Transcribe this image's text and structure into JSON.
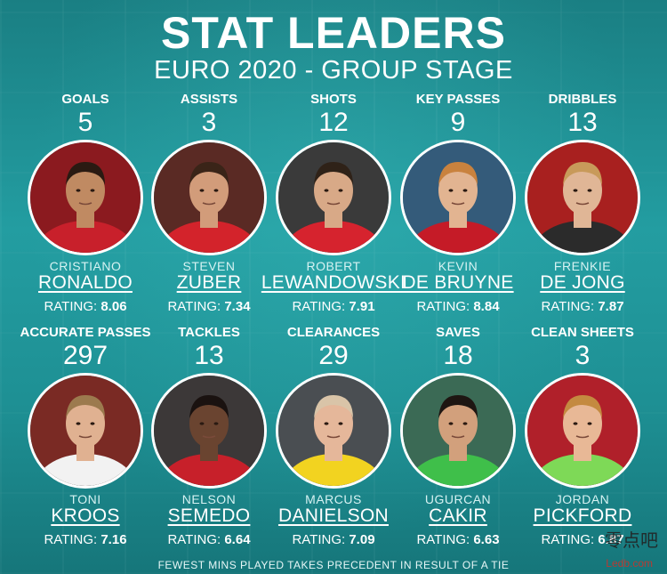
{
  "header": {
    "title": "STAT LEADERS",
    "subtitle": "EURO 2020 - GROUP STAGE"
  },
  "rating_label": "RATING:",
  "leaders": [
    {
      "category": "GOALS",
      "value": "5",
      "first": "CRISTIANO",
      "last": "RONALDO",
      "rating": "8.06",
      "kit": "#c8202b",
      "bg": "#8b1a1f",
      "skin": "#c08a62",
      "hair": "#2a1a12"
    },
    {
      "category": "ASSISTS",
      "value": "3",
      "first": "STEVEN",
      "last": "ZUBER",
      "rating": "7.34",
      "kit": "#d3232b",
      "bg": "#5a2a24",
      "skin": "#d29c7a",
      "hair": "#3a2418"
    },
    {
      "category": "SHOTS",
      "value": "12",
      "first": "ROBERT",
      "last": "LEWANDOWSKI",
      "rating": "7.91",
      "kit": "#d6232e",
      "bg": "#3a3a3a",
      "skin": "#d8a987",
      "hair": "#2f2218"
    },
    {
      "category": "KEY PASSES",
      "value": "9",
      "first": "KEVIN",
      "last": "DE BRUYNE",
      "rating": "8.84",
      "kit": "#c51b27",
      "bg": "#345b7a",
      "skin": "#e2b491",
      "hair": "#c9823e"
    },
    {
      "category": "DRIBBLES",
      "value": "13",
      "first": "FRENKIE",
      "last": "DE JONG",
      "rating": "7.87",
      "kit": "#2b2b2b",
      "bg": "#a8201f",
      "skin": "#e0b696",
      "hair": "#c89a5a"
    },
    {
      "category": "ACCURATE PASSES",
      "value": "297",
      "first": "TONI",
      "last": "KROOS",
      "rating": "7.16",
      "kit": "#f2f2f2",
      "bg": "#7a2a24",
      "skin": "#e0b191",
      "hair": "#9c7a4e"
    },
    {
      "category": "TACKLES",
      "value": "13",
      "first": "NELSON",
      "last": "SEMEDO",
      "rating": "6.64",
      "kit": "#c7202a",
      "bg": "#3c3838",
      "skin": "#6a4430",
      "hair": "#1a1210"
    },
    {
      "category": "CLEARANCES",
      "value": "29",
      "first": "MARCUS",
      "last": "DANIELSON",
      "rating": "7.09",
      "kit": "#f2d320",
      "bg": "#4a4e52",
      "skin": "#e5b79a",
      "hair": "#d9c4a8"
    },
    {
      "category": "SAVES",
      "value": "18",
      "first": "UGURCAN",
      "last": "CAKIR",
      "rating": "6.63",
      "kit": "#3fbf4a",
      "bg": "#3b6a55",
      "skin": "#d2a07c",
      "hair": "#1e1612"
    },
    {
      "category": "CLEAN SHEETS",
      "value": "3",
      "first": "JORDAN",
      "last": "PICKFORD",
      "rating": "6.87",
      "kit": "#7ed957",
      "bg": "#b0202a",
      "skin": "#e8b896",
      "hair": "#c48a40"
    }
  ],
  "footer": "FEWEST MINS PLAYED TAKES PRECEDENT IN RESULT OF A TIE",
  "watermark": {
    "text": "零点吧",
    "url": "Ledb.com"
  }
}
